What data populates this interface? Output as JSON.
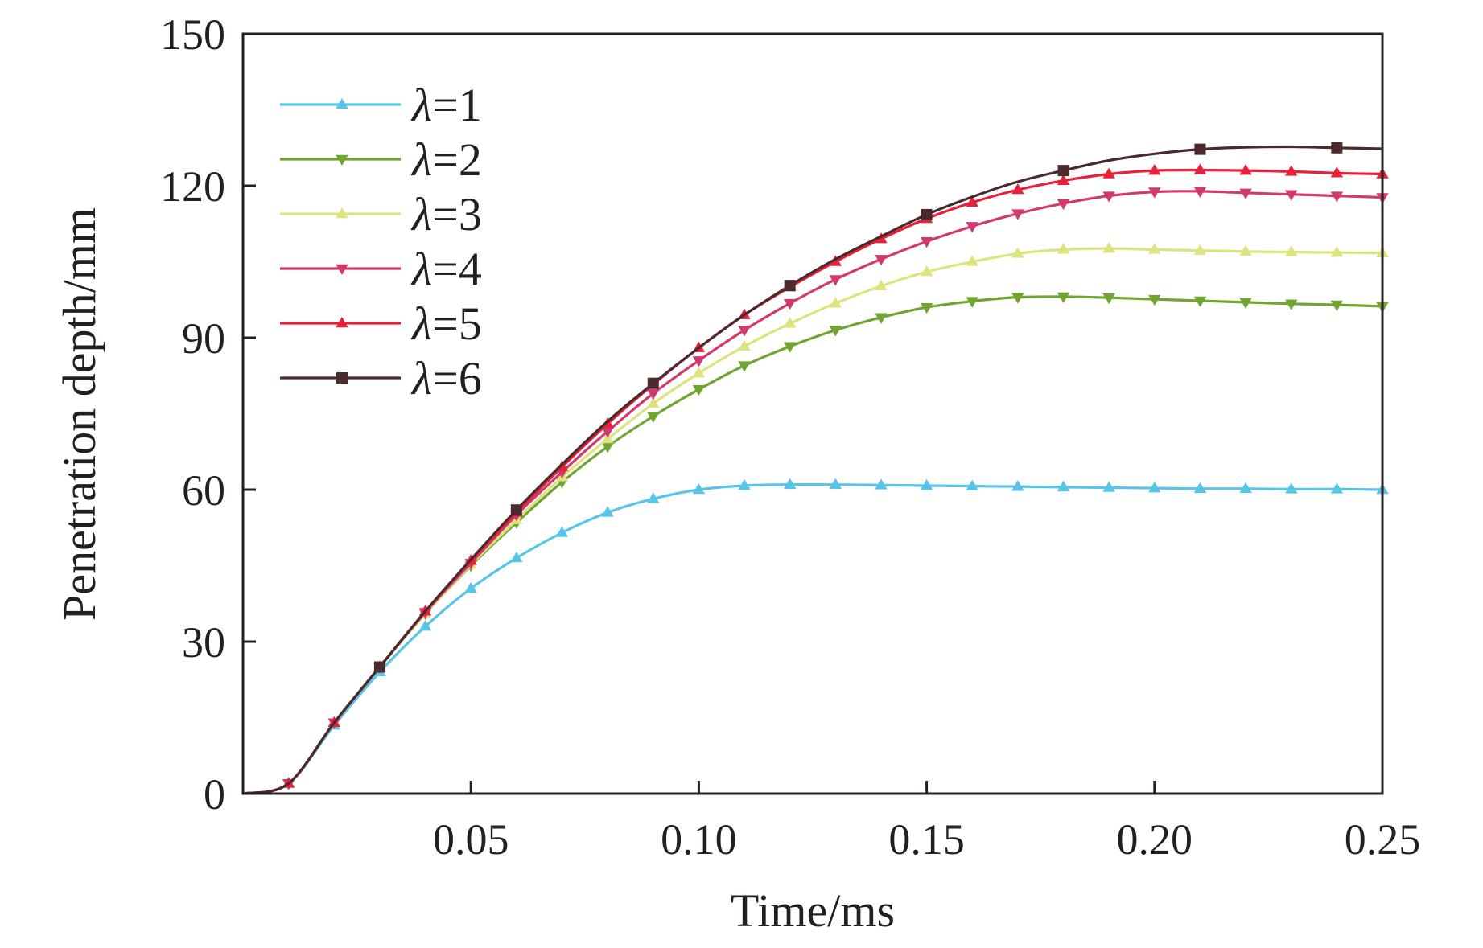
{
  "chart_data": {
    "type": "line",
    "xlabel": "Time/ms",
    "ylabel": "Penetration depth/mm",
    "xlim": [
      0,
      0.25
    ],
    "ylim": [
      0,
      150
    ],
    "xticks": [
      0.05,
      0.1,
      0.15,
      0.2,
      0.25
    ],
    "xtick_labels": [
      "0.05",
      "0.10",
      "0.15",
      "0.20",
      "0.25"
    ],
    "yticks": [
      0,
      30,
      60,
      90,
      120,
      150
    ],
    "ytick_labels": [
      "0",
      "30",
      "60",
      "90",
      "120",
      "150"
    ],
    "grid": false,
    "legend_position": "top-left",
    "series": [
      {
        "name": "λ=1",
        "symbol": "λ",
        "value_label": "=1",
        "color": "#56c5e8",
        "marker": "triangle-up",
        "x": [
          0,
          0.01,
          0.02,
          0.03,
          0.04,
          0.05,
          0.06,
          0.07,
          0.08,
          0.09,
          0.1,
          0.11,
          0.12,
          0.13,
          0.14,
          0.15,
          0.16,
          0.17,
          0.18,
          0.19,
          0.2,
          0.21,
          0.22,
          0.23,
          0.24,
          0.25
        ],
        "y": [
          0,
          2,
          13.5,
          24,
          33,
          40.5,
          46.5,
          51.5,
          55.5,
          58.2,
          60,
          60.8,
          61,
          61,
          60.9,
          60.8,
          60.7,
          60.6,
          60.5,
          60.4,
          60.3,
          60.2,
          60.2,
          60.1,
          60.1,
          60
        ]
      },
      {
        "name": "λ=2",
        "symbol": "λ",
        "value_label": "=2",
        "color": "#6fa530",
        "marker": "triangle-down",
        "x": [
          0,
          0.01,
          0.02,
          0.03,
          0.04,
          0.05,
          0.06,
          0.07,
          0.08,
          0.09,
          0.1,
          0.11,
          0.12,
          0.13,
          0.14,
          0.15,
          0.16,
          0.17,
          0.18,
          0.19,
          0.2,
          0.21,
          0.22,
          0.23,
          0.24,
          0.25
        ],
        "y": [
          0,
          2,
          14,
          25,
          35.5,
          45,
          53.5,
          61.5,
          68.5,
          74.5,
          79.8,
          84.5,
          88.3,
          91.5,
          94,
          96,
          97.2,
          98,
          98.1,
          97.9,
          97.6,
          97.3,
          97,
          96.7,
          96.5,
          96.2
        ]
      },
      {
        "name": "λ=3",
        "symbol": "λ",
        "value_label": "=3",
        "color": "#dde37e",
        "marker": "triangle-up",
        "x": [
          0,
          0.01,
          0.02,
          0.03,
          0.04,
          0.05,
          0.06,
          0.07,
          0.08,
          0.09,
          0.1,
          0.11,
          0.12,
          0.13,
          0.14,
          0.15,
          0.16,
          0.17,
          0.18,
          0.19,
          0.2,
          0.21,
          0.22,
          0.23,
          0.24,
          0.25
        ],
        "y": [
          0,
          2,
          14,
          25,
          35.5,
          45.2,
          54,
          62.5,
          70,
          77,
          83,
          88.3,
          92.8,
          96.8,
          100.2,
          103,
          105,
          106.6,
          107.4,
          107.6,
          107.4,
          107.2,
          107,
          106.9,
          106.8,
          106.7
        ]
      },
      {
        "name": "λ=4",
        "symbol": "λ",
        "value_label": "=4",
        "color": "#d1396f",
        "marker": "triangle-down",
        "x": [
          0,
          0.01,
          0.02,
          0.03,
          0.04,
          0.05,
          0.06,
          0.07,
          0.08,
          0.09,
          0.1,
          0.11,
          0.12,
          0.13,
          0.14,
          0.15,
          0.16,
          0.17,
          0.18,
          0.19,
          0.2,
          0.21,
          0.22,
          0.23,
          0.24,
          0.25
        ],
        "y": [
          0,
          2,
          14,
          25,
          35.8,
          45.5,
          55,
          63.5,
          71.5,
          79,
          85.5,
          91.5,
          96.8,
          101.5,
          105.5,
          109,
          112,
          114.5,
          116.5,
          118,
          118.8,
          118.9,
          118.6,
          118.3,
          118,
          117.7
        ]
      },
      {
        "name": "λ=5",
        "symbol": "λ",
        "value_label": "=5",
        "color": "#e8203a",
        "marker": "triangle-up",
        "x": [
          0,
          0.01,
          0.02,
          0.03,
          0.04,
          0.05,
          0.06,
          0.07,
          0.08,
          0.09,
          0.1,
          0.11,
          0.12,
          0.13,
          0.14,
          0.15,
          0.16,
          0.17,
          0.18,
          0.19,
          0.2,
          0.21,
          0.22,
          0.23,
          0.24,
          0.25
        ],
        "y": [
          0,
          2,
          14,
          25,
          36,
          46,
          55.5,
          64.5,
          73,
          80.8,
          88,
          94.5,
          100,
          105,
          109.5,
          113.5,
          116.7,
          119.2,
          121,
          122.3,
          123,
          123.1,
          123,
          122.8,
          122.5,
          122.3
        ]
      },
      {
        "name": "λ=6",
        "symbol": "λ",
        "value_label": "=6",
        "color": "#4a2a2c",
        "marker": "square",
        "x": [
          0,
          0.01,
          0.02,
          0.03,
          0.04,
          0.05,
          0.06,
          0.07,
          0.08,
          0.09,
          0.1,
          0.11,
          0.12,
          0.13,
          0.14,
          0.15,
          0.16,
          0.17,
          0.18,
          0.19,
          0.2,
          0.21,
          0.22,
          0.23,
          0.24,
          0.25
        ],
        "y": [
          0,
          2,
          14,
          25,
          36,
          46.2,
          56,
          65,
          73.5,
          81,
          88,
          94.5,
          100.3,
          105.5,
          110,
          114.3,
          117.8,
          120.8,
          123,
          125,
          126.3,
          127.2,
          127.6,
          127.7,
          127.5,
          127.3
        ]
      }
    ]
  }
}
